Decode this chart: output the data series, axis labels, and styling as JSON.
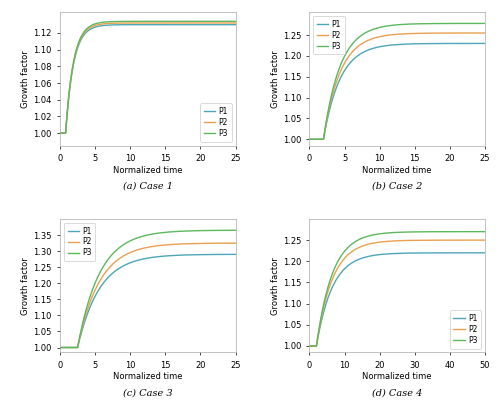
{
  "colors": {
    "P1": "#4da6b8",
    "P2": "#e8a050",
    "P3": "#5cb85c"
  },
  "cases": [
    {
      "label": "(a) Case 1",
      "xmax": 25,
      "x_ticks": [
        0,
        5,
        10,
        15,
        20,
        25
      ],
      "delay": 0.8,
      "rate": 0.9,
      "asymptotes": {
        "P1": 1.13,
        "P2": 1.132,
        "P3": 1.134
      },
      "legend_loc": "lower right",
      "ylim": [
        0.985,
        1.145
      ],
      "yticks": [
        1.0,
        1.02,
        1.04,
        1.06,
        1.08,
        1.1,
        1.12
      ]
    },
    {
      "label": "(b) Case 2",
      "xmax": 25,
      "x_ticks": [
        0,
        5,
        10,
        15,
        20,
        25
      ],
      "delay": 2.0,
      "rate": 0.42,
      "asymptotes": {
        "P1": 1.23,
        "P2": 1.255,
        "P3": 1.278
      },
      "legend_loc": "upper left",
      "ylim": [
        0.985,
        1.305
      ],
      "yticks": [
        1.0,
        1.05,
        1.1,
        1.15,
        1.2,
        1.25
      ]
    },
    {
      "label": "(c) Case 3",
      "xmax": 25,
      "x_ticks": [
        0,
        5,
        10,
        15,
        20,
        25
      ],
      "delay": 2.5,
      "rate": 0.32,
      "asymptotes": {
        "P1": 1.29,
        "P2": 1.325,
        "P3": 1.365
      },
      "legend_loc": "upper left",
      "ylim": [
        0.985,
        1.4
      ],
      "yticks": [
        1.0,
        1.05,
        1.1,
        1.15,
        1.2,
        1.25,
        1.3,
        1.35
      ]
    },
    {
      "label": "(d) Case 4",
      "xmax": 50,
      "x_ticks": [
        0,
        10,
        20,
        30,
        40,
        50
      ],
      "delay": 2.0,
      "rate": 0.22,
      "asymptotes": {
        "P1": 1.22,
        "P2": 1.25,
        "P3": 1.27
      },
      "legend_loc": "lower right",
      "ylim": [
        0.985,
        1.3
      ],
      "yticks": [
        1.0,
        1.05,
        1.1,
        1.15,
        1.2,
        1.25
      ]
    }
  ]
}
